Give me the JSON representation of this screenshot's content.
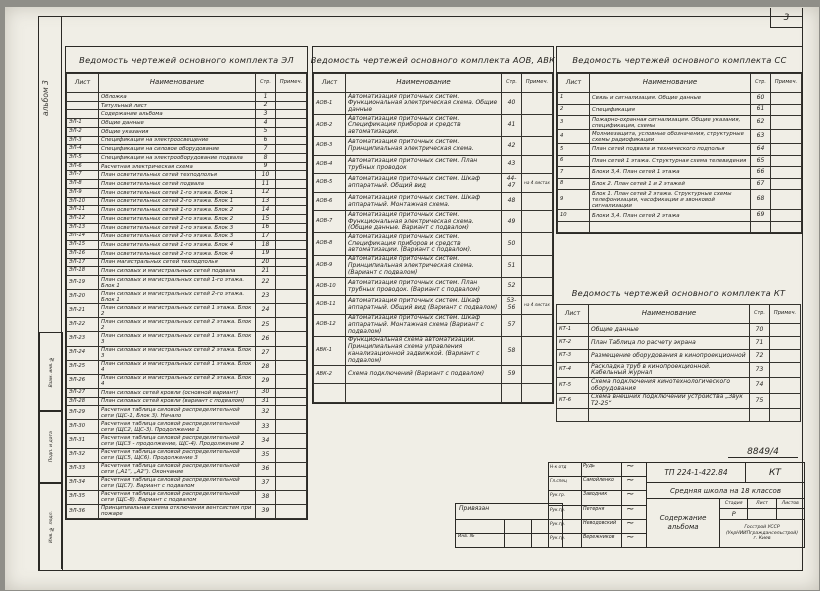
{
  "page": {
    "sheet_number": "3",
    "album_note": "альбом 3",
    "doc_number_above_stamp": "8849/4"
  },
  "table_columns": {
    "list": "Лист",
    "name": "Наименование",
    "page": "Стр.",
    "note": "Примеч."
  },
  "tables": {
    "el": {
      "title": "Ведомость чертежей основного комплекта ЭЛ",
      "rows": [
        {
          "list": "",
          "name": "Обложка",
          "page": "1",
          "note": ""
        },
        {
          "list": "",
          "name": "Титульный лист",
          "page": "2",
          "note": ""
        },
        {
          "list": "",
          "name": "Содержание альбома",
          "page": "3",
          "note": ""
        },
        {
          "list": "ЭЛ-1",
          "name": "Общие данные",
          "page": "4",
          "note": ""
        },
        {
          "list": "ЭЛ-2",
          "name": "Общие указания",
          "page": "5",
          "note": ""
        },
        {
          "list": "ЭЛ-3",
          "name": "Спецификация на электроосвещение",
          "page": "6",
          "note": ""
        },
        {
          "list": "ЭЛ-4",
          "name": "Спецификация на силовое оборудование",
          "page": "7",
          "note": ""
        },
        {
          "list": "ЭЛ-5",
          "name": "Спецификация на электрооборудование подвала",
          "page": "8",
          "note": ""
        },
        {
          "list": "ЭЛ-6",
          "name": "Расчетная электрическая схема",
          "page": "9",
          "note": ""
        },
        {
          "list": "ЭЛ-7",
          "name": "План осветительных сетей техподполья",
          "page": "10",
          "note": ""
        },
        {
          "list": "ЭЛ-8",
          "name": "План осветительных сетей подвала",
          "page": "11",
          "note": ""
        },
        {
          "list": "ЭЛ-9",
          "name": "План осветительных сетей 1-го этажа. Блок 1",
          "page": "12",
          "note": ""
        },
        {
          "list": "ЭЛ-10",
          "name": "План осветительных сетей 2-го этажа. Блок 1",
          "page": "13",
          "note": ""
        },
        {
          "list": "ЭЛ-11",
          "name": "План осветительных сетей 1-го этажа. Блок 2",
          "page": "14",
          "note": ""
        },
        {
          "list": "ЭЛ-12",
          "name": "План осветительных сетей 2-го этажа. Блок 2",
          "page": "15",
          "note": ""
        },
        {
          "list": "ЭЛ-13",
          "name": "План осветительных сетей 1-го этажа. Блок 3",
          "page": "16",
          "note": ""
        },
        {
          "list": "ЭЛ-14",
          "name": "План осветительных сетей 2-го этажа. Блок 3",
          "page": "17",
          "note": ""
        },
        {
          "list": "ЭЛ-15",
          "name": "План осветительных сетей 1-го этажа. Блок 4",
          "page": "18",
          "note": ""
        },
        {
          "list": "ЭЛ-16",
          "name": "План осветительных сетей 2-го этажа. Блок 4",
          "page": "19",
          "note": ""
        },
        {
          "list": "ЭЛ-17",
          "name": "План магистральных сетей техподполья",
          "page": "20",
          "note": ""
        },
        {
          "list": "ЭЛ-18",
          "name": "План силовых и магистральных сетей подвала",
          "page": "21",
          "note": ""
        },
        {
          "list": "ЭЛ-19",
          "name": "План силовых и магистральных сетей 1-го этажа. Блок 1",
          "page": "22",
          "note": ""
        },
        {
          "list": "ЭЛ-20",
          "name": "План силовых и магистральных сетей 2-го этажа. Блок 1",
          "page": "23",
          "note": ""
        },
        {
          "list": "ЭЛ-21",
          "name": "План силовых и магистральных сетей 1 этажа. Блок 2",
          "page": "24",
          "note": ""
        },
        {
          "list": "ЭЛ-22",
          "name": "План силовых и магистральных сетей 2 этажа. Блок 2",
          "page": "25",
          "note": ""
        },
        {
          "list": "ЭЛ-23",
          "name": "План силовых и магистральных сетей 1 этажа. Блок 3",
          "page": "26",
          "note": ""
        },
        {
          "list": "ЭЛ-24",
          "name": "План силовых и магистральных сетей 2 этажа. Блок 3",
          "page": "27",
          "note": ""
        },
        {
          "list": "ЭЛ-25",
          "name": "План силовых и магистральных сетей 1 этажа. Блок 4",
          "page": "28",
          "note": ""
        },
        {
          "list": "ЭЛ-26",
          "name": "План силовых и магистральных сетей 2 этажа. Блок 4",
          "page": "29",
          "note": ""
        },
        {
          "list": "ЭЛ-27",
          "name": "План силовых сетей кровли (основной вариант)",
          "page": "30",
          "note": ""
        },
        {
          "list": "ЭЛ-28",
          "name": "План силовых сетей кровли (вариант с подвалом)",
          "page": "31",
          "note": ""
        },
        {
          "list": "ЭЛ-29",
          "name": "Расчетная таблица силовой распределительной сети (ЩС-1, Блок 3). Начало",
          "page": "32",
          "note": ""
        },
        {
          "list": "ЭЛ-30",
          "name": "Расчетная таблица силовой распределительной сети (ЩС2, ЩС-3). Продолжение 1",
          "page": "33",
          "note": ""
        },
        {
          "list": "ЭЛ-31",
          "name": "Расчетная таблица силовой распределительной сети (ЩС3 - продолжение, ЩС-4). Продолжение 2",
          "page": "34",
          "note": ""
        },
        {
          "list": "ЭЛ-32",
          "name": "Расчетная таблица силовой распределительной сети (ЩС5, ЩС6). Продолжение 3",
          "page": "35",
          "note": ""
        },
        {
          "list": "ЭЛ-33",
          "name": "Расчетная таблица силовой распределительной сети („А1“, „А2“). Окончание",
          "page": "36",
          "note": ""
        },
        {
          "list": "ЭЛ-34",
          "name": "Расчетная таблица силовой распределительной сети (ЩС7). Вариант с подвалом",
          "page": "37",
          "note": ""
        },
        {
          "list": "ЭЛ-35",
          "name": "Расчетная таблица силовой распределительной сети (ЩС-8). Вариант с подвалом",
          "page": "38",
          "note": ""
        },
        {
          "list": "ЭЛ-36",
          "name": "Принципиальная схема отключения вентсистем при пожаре",
          "page": "39",
          "note": ""
        }
      ]
    },
    "aov": {
      "title": "Ведомость чертежей основного комплекта АОВ, АВК",
      "rows": [
        {
          "list": "АОВ-1",
          "name": "Автоматизация приточных систем. Функциональная электрическая схема. Общие данные",
          "page": "40",
          "note": ""
        },
        {
          "list": "АОВ-2",
          "name": "Автоматизация приточных систем. Спецификация приборов и средств автоматизации.",
          "page": "41",
          "note": ""
        },
        {
          "list": "АОВ-3",
          "name": "Автоматизация приточных систем. Принципиальная электрическая схема.",
          "page": "42",
          "note": ""
        },
        {
          "list": "АОВ-4",
          "name": "Автоматизация приточных систем. План трубных проводок",
          "page": "43",
          "note": ""
        },
        {
          "list": "АОВ-5",
          "name": "Автоматизация приточных систем. Шкаф аппаратный. Общий вид",
          "page": "44-47",
          "note": "на 4 листах"
        },
        {
          "list": "АОВ-6",
          "name": "Автоматизация приточных систем. Шкаф аппаратный. Монтажная схема.",
          "page": "48",
          "note": ""
        },
        {
          "list": "АОВ-7",
          "name": "Автоматизация приточных систем. Функциональная электрическая схема. (Общие данные. Вариант с подвалом)",
          "page": "49",
          "note": ""
        },
        {
          "list": "АОВ-8",
          "name": "Автоматизация приточных систем. Спецификация приборов и средств автоматизации. (Вариант с подвалом).",
          "page": "50",
          "note": ""
        },
        {
          "list": "АОВ-9",
          "name": "Автоматизация приточных систем. Принципиальная электрическая схема. (Вариант с подвалом)",
          "page": "51",
          "note": ""
        },
        {
          "list": "АОВ-10",
          "name": "Автоматизация приточных систем. План трубных проводок. (Вариант с подвалом)",
          "page": "52",
          "note": ""
        },
        {
          "list": "АОВ-11",
          "name": "Автоматизация приточных систем. Шкаф аппаратный. Общий вид (Вариант с подвалом)",
          "page": "53-56",
          "note": "на 4 листах"
        },
        {
          "list": "АОВ-12",
          "name": "Автоматизация приточных систем. Шкаф аппаратный. Монтажная схема (Вариант с подвалом)",
          "page": "57",
          "note": ""
        },
        {
          "list": "АВК-1",
          "name": "Функциональная схема автоматизации. Принципиальная схема управления канализационной задвижкой. (Вариант с подвалом)",
          "page": "58",
          "note": ""
        },
        {
          "list": "АВК-2",
          "name": "Схема подключений (Вариант с подвалом)",
          "page": "59",
          "note": ""
        },
        {
          "list": "",
          "name": "",
          "page": "",
          "note": ""
        }
      ]
    },
    "ss": {
      "title": "Ведомость чертежей основного комплекта СС",
      "rows": [
        {
          "list": "1",
          "name": "Связь и сигнализация. Общие данные",
          "page": "60",
          "note": ""
        },
        {
          "list": "2",
          "name": "Спецификация",
          "page": "61",
          "note": ""
        },
        {
          "list": "3",
          "name": "Пожарно-охранная сигнализация. Общие указания, спецификация, схемы",
          "page": "62",
          "note": ""
        },
        {
          "list": "4",
          "name": "Молниезащита, условные обозначения, структурные схемы радиофикации",
          "page": "63",
          "note": ""
        },
        {
          "list": "5",
          "name": "План сетей подвала и технического подполья",
          "page": "64",
          "note": ""
        },
        {
          "list": "6",
          "name": "План сетей 1 этажа. Структурная схема телевидения",
          "page": "65",
          "note": ""
        },
        {
          "list": "7",
          "name": "Блоки 3,4. План сетей 1 этажа",
          "page": "66",
          "note": ""
        },
        {
          "list": "8",
          "name": "Блок 2. План сетей 1 и 2 этажей",
          "page": "67",
          "note": ""
        },
        {
          "list": "9",
          "name": "Блок 1. План сетей 2 этажа. Структурные схемы телефонизации, часофикации и звонковой сигнализации",
          "page": "68",
          "note": ""
        },
        {
          "list": "10",
          "name": "Блоки 3,4. План сетей 2 этажа",
          "page": "69",
          "note": ""
        },
        {
          "list": "",
          "name": "",
          "page": "",
          "note": ""
        }
      ]
    },
    "kt": {
      "title": "Ведомость чертежей основного комплекта КТ",
      "rows": [
        {
          "list": "КТ-1",
          "name": "Общие данные",
          "page": "70",
          "note": ""
        },
        {
          "list": "КТ-2",
          "name": "План              Таблица по расчету экрана",
          "page": "71",
          "note": ""
        },
        {
          "list": "КТ-3",
          "name": "Размещение оборудования в кинопроекционной",
          "page": "72",
          "note": ""
        },
        {
          "list": "КТ-4",
          "name": "Раскладка труб в кинопроекционной. Кабельный журнал",
          "page": "73",
          "note": ""
        },
        {
          "list": "КТ-5",
          "name": "Схема подключения кинотехнологического оборудования",
          "page": "74",
          "note": ""
        },
        {
          "list": "КТ-6",
          "name": "Схема внешних подключений устройства „Звук Т2-25“",
          "page": "75",
          "note": ""
        },
        {
          "list": "",
          "name": "",
          "page": "",
          "note": ""
        }
      ]
    }
  },
  "title_block": {
    "doc_code": "ТП 224-1-422.84",
    "set_code": "КТ",
    "object_name": "Средняя школа на 18 классов",
    "sheet_title_line1": "Содержание",
    "sheet_title_line2": "альбома",
    "stage_label": "Стадия",
    "sheet_label": "Лист",
    "sheets_label": "Листов",
    "stage_value": "Р",
    "org_line1": "Госстрой УССР",
    "org_line2": "(УкрНИИПграждансельстрой)",
    "org_line3": "г. Киев",
    "signatures": [
      {
        "role": "Н-к отд",
        "name": "Рудь"
      },
      {
        "role": "Гл.спец",
        "name": "Самойленко"
      },
      {
        "role": "Рук.гр.",
        "name": "Заводник"
      },
      {
        "role": "Рук.гр.",
        "name": "Петерня"
      },
      {
        "role": "Рук.гр.",
        "name": "Неводовский"
      },
      {
        "role": "Рук.гр.",
        "name": "Вережников"
      }
    ]
  },
  "attach_block": {
    "title": "Привязан",
    "inv_label": "Инв. №"
  },
  "margin": {
    "stamp_labels": [
      "Взам. инв. №",
      "Подп. и дата",
      "Инв. № подл."
    ]
  }
}
